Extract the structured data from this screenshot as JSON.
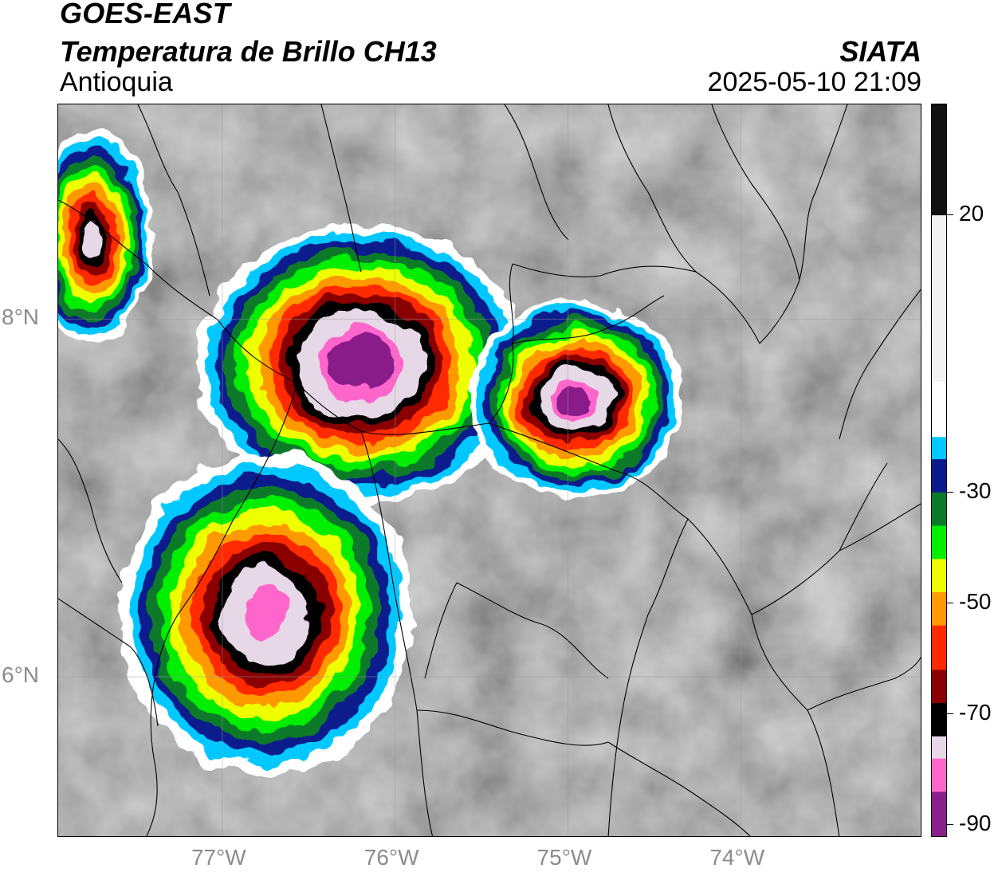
{
  "header": {
    "satellite": "GOES-EAST",
    "product": "Temperatura de Brillo CH13",
    "region": "Antioquia",
    "agency": "SIATA",
    "datetime": "2025-05-10 21:09"
  },
  "map": {
    "lon_range": [
      -77.95,
      -72.95
    ],
    "lat_range": [
      5.1,
      9.2
    ],
    "lon_ticks": [
      {
        "value": -77,
        "label": "77°W"
      },
      {
        "value": -76,
        "label": "76°W"
      },
      {
        "value": -75,
        "label": "75°W"
      },
      {
        "value": -74,
        "label": "74°W"
      }
    ],
    "lat_ticks": [
      {
        "value": 8,
        "label": "8°N"
      },
      {
        "value": 6,
        "label": "6°N"
      }
    ],
    "grid": true,
    "storm_cells": [
      {
        "name": "cell-uraba-west",
        "lon": -77.75,
        "lat": 8.45,
        "rx_deg": 0.35,
        "ry_deg": 0.6,
        "coldest": -75
      },
      {
        "name": "cell-norte",
        "lon": -76.2,
        "lat": 7.75,
        "rx_deg": 0.95,
        "ry_deg": 0.78,
        "coldest": -88
      },
      {
        "name": "cell-magdalena",
        "lon": -74.95,
        "lat": 7.55,
        "rx_deg": 0.62,
        "ry_deg": 0.55,
        "coldest": -87
      },
      {
        "name": "cell-choco",
        "lon": -76.75,
        "lat": 6.35,
        "rx_deg": 0.85,
        "ry_deg": 0.9,
        "coldest": -82
      }
    ]
  },
  "colorbar": {
    "label_ticks": [
      {
        "value": 20,
        "label": "20"
      },
      {
        "value": -30,
        "label": "-30"
      },
      {
        "value": -50,
        "label": "-50"
      },
      {
        "value": -70,
        "label": "-70"
      },
      {
        "value": -90,
        "label": "-90"
      }
    ],
    "stops": [
      {
        "value": 40,
        "color": "#111111"
      },
      {
        "value": 0,
        "color": "#f2f2f2"
      },
      {
        "value": -20,
        "color": "#ffffff"
      },
      {
        "value": -22,
        "color": "#00c8ff"
      },
      {
        "value": -28,
        "color": "#0a1a8c"
      },
      {
        "value": -33,
        "color": "#0a7a2a"
      },
      {
        "value": -40,
        "color": "#00ee00"
      },
      {
        "value": -46,
        "color": "#eeff00"
      },
      {
        "value": -52,
        "color": "#ff9900"
      },
      {
        "value": -58,
        "color": "#ff2a00"
      },
      {
        "value": -65,
        "color": "#8a0000"
      },
      {
        "value": -70,
        "color": "#000000"
      },
      {
        "value": -78,
        "color": "#e6d8e6"
      },
      {
        "value": -80,
        "color": "#ff66cc"
      },
      {
        "value": -90,
        "color": "#8a1e8a"
      }
    ]
  }
}
